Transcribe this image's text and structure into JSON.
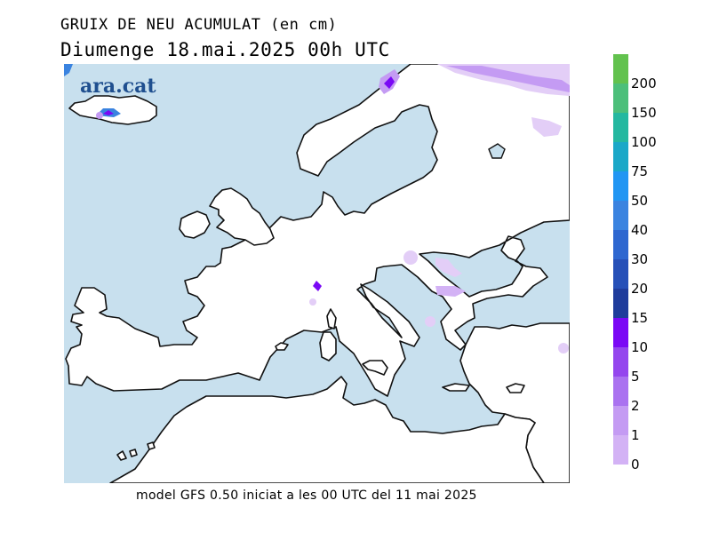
{
  "title": "GRUIX DE NEU ACUMULAT (en cm)",
  "subtitle": "Diumenge  18.mai.2025 00h UTC",
  "footer": "model GFS 0.50 iniciat a les 00 UTC del 11 mai 2025",
  "logo": "ara.cat",
  "colors": {
    "sea": "#c8e0ee",
    "land": "#ffffff",
    "coast": "#111111"
  },
  "legend": {
    "labels": [
      "0",
      "1",
      "2",
      "5",
      "10",
      "15",
      "20",
      "30",
      "40",
      "50",
      "75",
      "100",
      "150",
      "200"
    ],
    "colors": [
      "#e3cef7",
      "#d3b2f5",
      "#c49bf3",
      "#aa72f0",
      "#9446ee",
      "#7a08f5",
      "#1f3c9c",
      "#2650b8",
      "#2e67d0",
      "#3a83e0",
      "#2196f3",
      "#1aa8c8",
      "#24b8a0",
      "#4cbf7a",
      "#62c24e"
    ]
  }
}
